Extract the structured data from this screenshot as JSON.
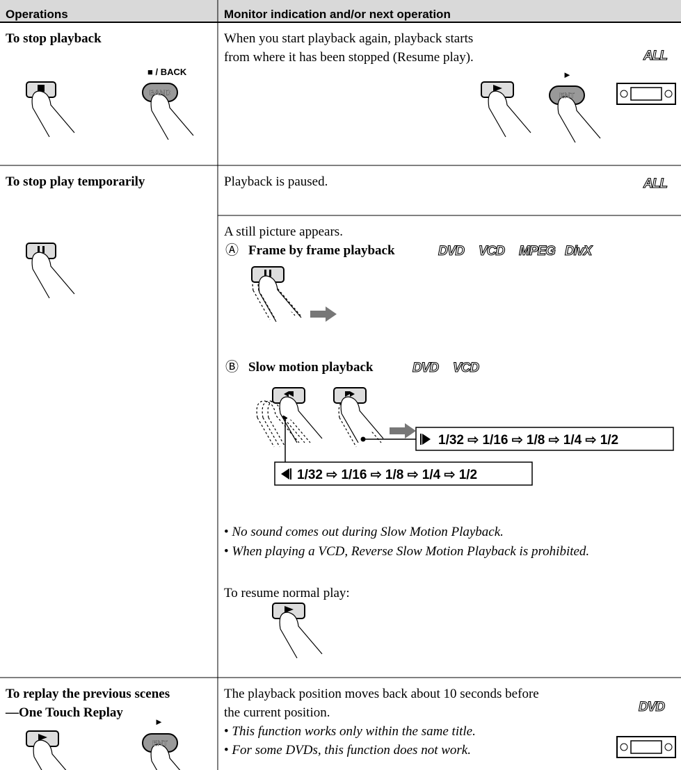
{
  "header": {
    "operations": "Operations",
    "monitor": "Monitor indication and/or next operation"
  },
  "rows": [
    {
      "operation": "To stop playback",
      "op_labels": [
        "■ / BACK",
        "BAND"
      ],
      "text": "When you start playback again, playback starts from where it has been stopped (Resume play).",
      "monitor_labels": [
        "►",
        "ENT"
      ],
      "badges": [
        "ALL"
      ]
    },
    {
      "operation": "To stop play temporarily",
      "sections": [
        {
          "text": "Playback is paused.",
          "badges": [
            "ALL"
          ]
        },
        {
          "text": "A still picture appears.",
          "items": [
            {
              "marker": "Ⓐ",
              "title": "Frame by frame playback",
              "badges": [
                "DVD",
                "VCD",
                "MPEG",
                "DivX"
              ]
            },
            {
              "marker": "Ⓑ",
              "title": "Slow motion playback",
              "badges": [
                "DVD",
                "VCD"
              ]
            }
          ],
          "forward_sequence": "1/32 ⇨ 1/16 ⇨ 1/8 ⇨ 1/4 ⇨ 1/2",
          "reverse_sequence": "1/32 ⇨ 1/16 ⇨ 1/8 ⇨ 1/4 ⇨ 1/2",
          "notes": [
            "No sound comes out during Slow Motion Playback.",
            "When playing a VCD, Reverse Slow Motion Playback is prohibited."
          ],
          "resume": "To resume normal play:"
        }
      ]
    },
    {
      "operation": "To replay the previous scenes—One Touch Replay",
      "op_labels": [
        "►",
        "ENT"
      ],
      "text": "The playback position moves back about 10 seconds before the current position.",
      "notes": [
        "This function works only within the same title.",
        "For some DVDs, this function does not work."
      ],
      "badges": [
        "DVD"
      ]
    }
  ]
}
